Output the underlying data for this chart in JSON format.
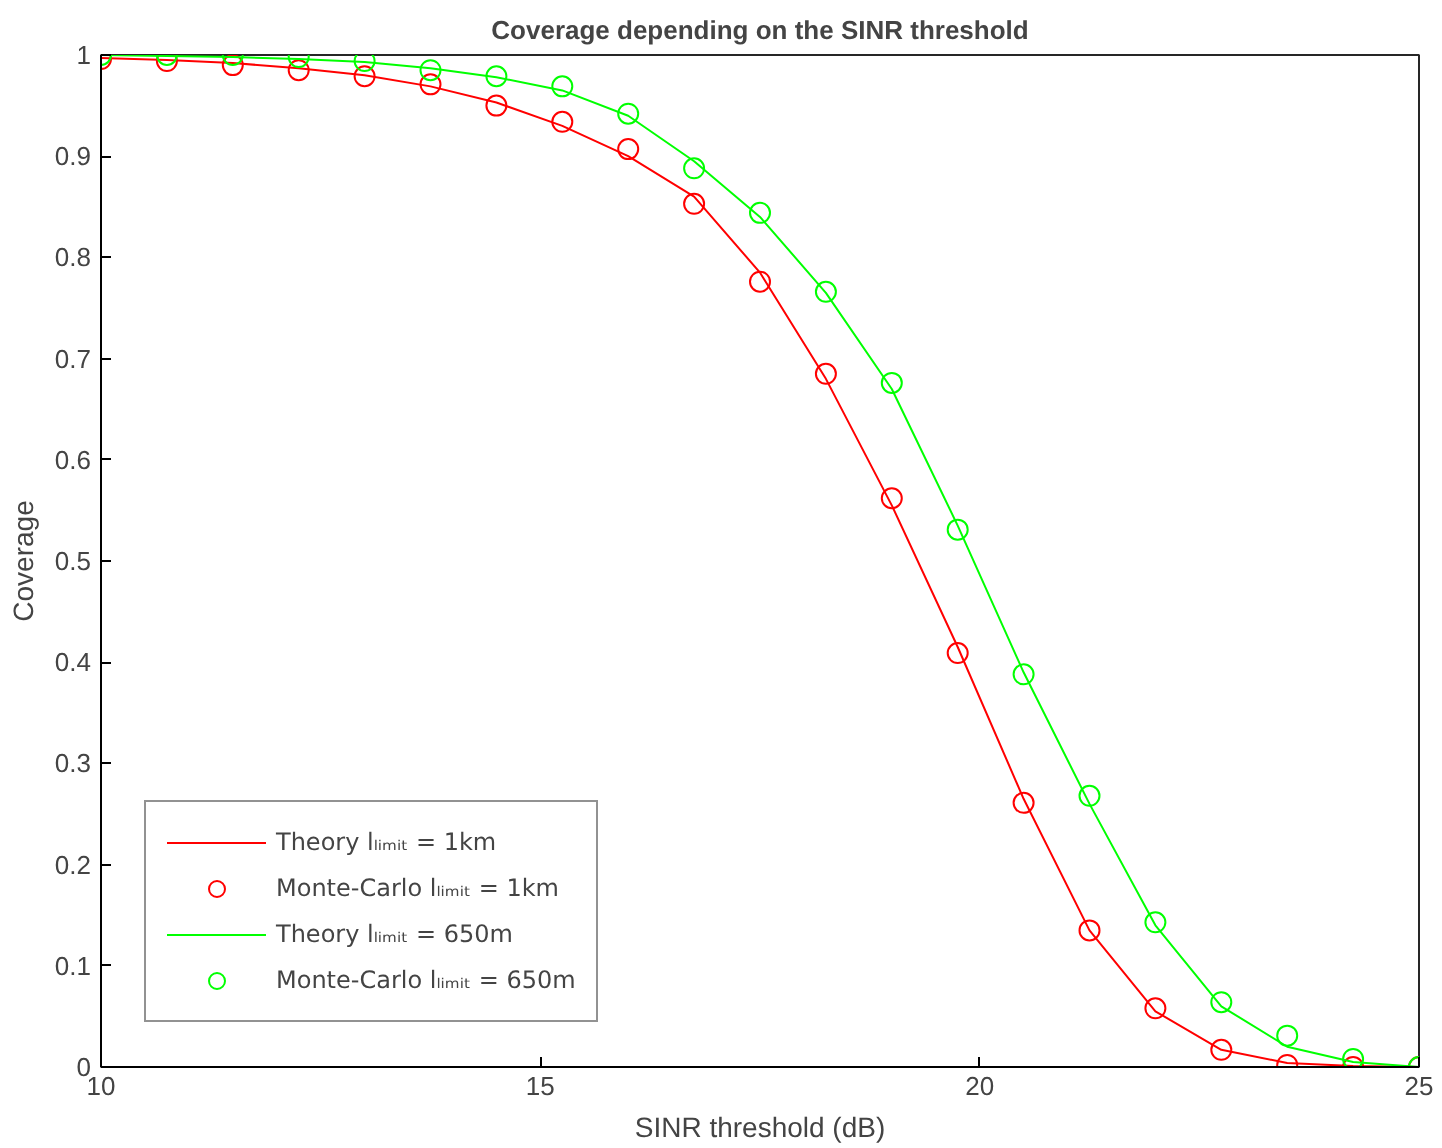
{
  "chart_data": {
    "type": "line",
    "title": "Coverage depending on the SINR threshold",
    "xlabel": "SINR threshold (dB)",
    "ylabel": "Coverage",
    "xlim": [
      10,
      25
    ],
    "xticks": [
      10,
      15,
      20,
      25
    ],
    "ylim": [
      0,
      1
    ],
    "yticks": [
      0,
      0.1,
      0.2,
      0.3,
      0.4,
      0.5,
      0.6,
      0.7,
      0.8,
      0.9,
      1
    ],
    "grid": false,
    "legend": "bottom left",
    "series": [
      {
        "name": "Theory lₗᵢₘᵢₜ = 1km",
        "marker": "none",
        "line_style": "solid",
        "color": "#ff0000",
        "x": [
          10,
          10.75,
          11.5,
          12.25,
          13,
          13.75,
          14.5,
          15.25,
          16,
          16.75,
          17.5,
          18.25,
          19,
          19.75,
          20.5,
          21.25,
          22,
          22.75,
          23.5,
          24.25,
          25
        ],
        "values": [
          0.997,
          0.995,
          0.992,
          0.987,
          0.98,
          0.969,
          0.953,
          0.93,
          0.9,
          0.86,
          0.785,
          0.68,
          0.555,
          0.415,
          0.265,
          0.135,
          0.055,
          0.017,
          0.004,
          0.001,
          0
        ]
      },
      {
        "name": "Monte-Carlo lₗᵢₘᵢₜ = 1km",
        "type": "scatter",
        "marker": "circle",
        "color": "#ff0000",
        "x": [
          10,
          10.75,
          11.5,
          12.25,
          13,
          13.75,
          14.5,
          15.25,
          16,
          16.75,
          17.5,
          18.25,
          19,
          19.75,
          20.5,
          21.25,
          22,
          22.75,
          23.5,
          24.25,
          25
        ],
        "values": [
          0.996,
          0.994,
          0.99,
          0.985,
          0.979,
          0.971,
          0.95,
          0.934,
          0.907,
          0.853,
          0.776,
          0.685,
          0.562,
          0.409,
          0.261,
          0.135,
          0.058,
          0.017,
          0.002,
          0,
          0
        ]
      },
      {
        "name": "Theory lₗᵢₘᵢₜ = 650m",
        "marker": "none",
        "line_style": "solid",
        "color": "#00ff00",
        "x": [
          10,
          10.75,
          11.5,
          12.25,
          13,
          13.75,
          14.5,
          15.25,
          16,
          16.75,
          17.5,
          18.25,
          19,
          19.75,
          20.5,
          21.25,
          22,
          22.75,
          23.5,
          24.25,
          25
        ],
        "values": [
          1,
          0.999,
          0.998,
          0.996,
          0.993,
          0.987,
          0.978,
          0.965,
          0.94,
          0.895,
          0.84,
          0.765,
          0.67,
          0.535,
          0.39,
          0.26,
          0.14,
          0.06,
          0.02,
          0.005,
          0
        ]
      },
      {
        "name": "Monte-Carlo lₗᵢₘᵢₜ = 650m",
        "type": "scatter",
        "marker": "circle",
        "color": "#00ff00",
        "x": [
          10,
          10.75,
          11.5,
          12.25,
          13,
          13.75,
          14.5,
          15.25,
          16,
          16.75,
          17.5,
          18.25,
          19,
          19.75,
          20.5,
          21.25,
          22,
          22.75,
          23.5,
          24.25,
          25
        ],
        "values": [
          1,
          1,
          1,
          0.998,
          0.994,
          0.985,
          0.979,
          0.969,
          0.942,
          0.888,
          0.844,
          0.766,
          0.676,
          0.531,
          0.388,
          0.268,
          0.143,
          0.064,
          0.031,
          0.008,
          0
        ]
      }
    ]
  }
}
